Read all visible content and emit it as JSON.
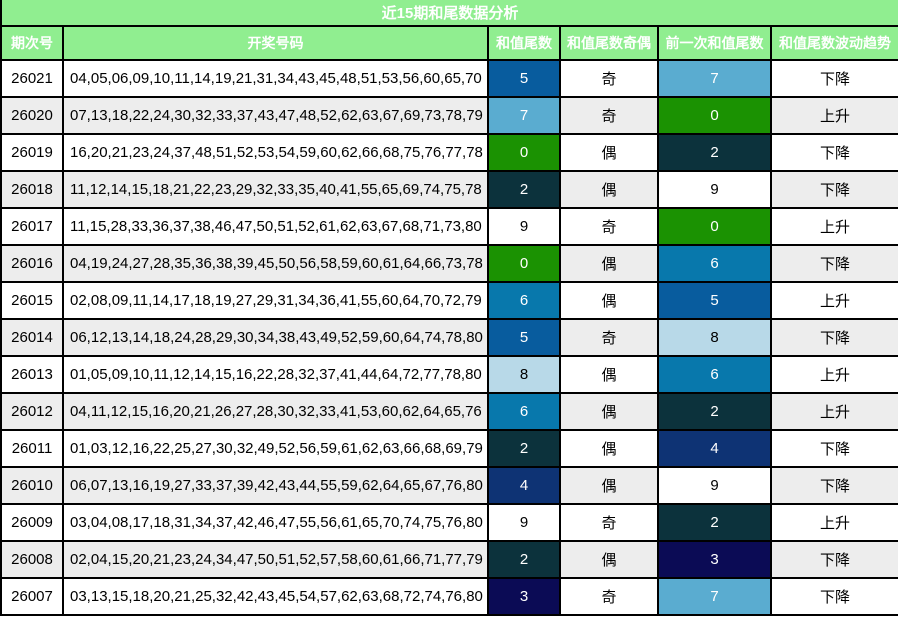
{
  "title": "近15期和尾数据分析",
  "chart_data": {
    "type": "table",
    "title": "近15期和尾数据分析",
    "columns": [
      "期次号",
      "开奖号码",
      "和值尾数",
      "和值尾数奇偶",
      "前一次和值尾数",
      "和值尾数波动趋势"
    ],
    "rows": [
      {
        "period": "26021",
        "numbers": "04,05,06,09,10,11,14,19,21,31,34,43,45,48,51,53,56,60,65,70",
        "sum_tail": "5",
        "parity": "奇",
        "prev_tail": "7",
        "trend": "下降"
      },
      {
        "period": "26020",
        "numbers": "07,13,18,22,24,30,32,33,37,43,47,48,52,62,63,67,69,73,78,79",
        "sum_tail": "7",
        "parity": "奇",
        "prev_tail": "0",
        "trend": "上升"
      },
      {
        "period": "26019",
        "numbers": "16,20,21,23,24,37,48,51,52,53,54,59,60,62,66,68,75,76,77,78",
        "sum_tail": "0",
        "parity": "偶",
        "prev_tail": "2",
        "trend": "下降"
      },
      {
        "period": "26018",
        "numbers": "11,12,14,15,18,21,22,23,29,32,33,35,40,41,55,65,69,74,75,78",
        "sum_tail": "2",
        "parity": "偶",
        "prev_tail": "9",
        "trend": "下降"
      },
      {
        "period": "26017",
        "numbers": "11,15,28,33,36,37,38,46,47,50,51,52,61,62,63,67,68,71,73,80",
        "sum_tail": "9",
        "parity": "奇",
        "prev_tail": "0",
        "trend": "上升"
      },
      {
        "period": "26016",
        "numbers": "04,19,24,27,28,35,36,38,39,45,50,56,58,59,60,61,64,66,73,78",
        "sum_tail": "0",
        "parity": "偶",
        "prev_tail": "6",
        "trend": "下降"
      },
      {
        "period": "26015",
        "numbers": "02,08,09,11,14,17,18,19,27,29,31,34,36,41,55,60,64,70,72,79",
        "sum_tail": "6",
        "parity": "偶",
        "prev_tail": "5",
        "trend": "上升"
      },
      {
        "period": "26014",
        "numbers": "06,12,13,14,18,24,28,29,30,34,38,43,49,52,59,60,64,74,78,80",
        "sum_tail": "5",
        "parity": "奇",
        "prev_tail": "8",
        "trend": "下降"
      },
      {
        "period": "26013",
        "numbers": "01,05,09,10,11,12,14,15,16,22,28,32,37,41,44,64,72,77,78,80",
        "sum_tail": "8",
        "parity": "偶",
        "prev_tail": "6",
        "trend": "上升"
      },
      {
        "period": "26012",
        "numbers": "04,11,12,15,16,20,21,26,27,28,30,32,33,41,53,60,62,64,65,76",
        "sum_tail": "6",
        "parity": "偶",
        "prev_tail": "2",
        "trend": "上升"
      },
      {
        "period": "26011",
        "numbers": "01,03,12,16,22,25,27,30,32,49,52,56,59,61,62,63,66,68,69,79",
        "sum_tail": "2",
        "parity": "偶",
        "prev_tail": "4",
        "trend": "下降"
      },
      {
        "period": "26010",
        "numbers": "06,07,13,16,19,27,33,37,39,42,43,44,55,59,62,64,65,67,76,80",
        "sum_tail": "4",
        "parity": "偶",
        "prev_tail": "9",
        "trend": "下降"
      },
      {
        "period": "26009",
        "numbers": "03,04,08,17,18,31,34,37,42,46,47,55,56,61,65,70,74,75,76,80",
        "sum_tail": "9",
        "parity": "奇",
        "prev_tail": "2",
        "trend": "上升"
      },
      {
        "period": "26008",
        "numbers": "02,04,15,20,21,23,24,34,47,50,51,52,57,58,60,61,66,71,77,79",
        "sum_tail": "2",
        "parity": "偶",
        "prev_tail": "3",
        "trend": "下降"
      },
      {
        "period": "26007",
        "numbers": "03,13,15,18,20,21,25,32,42,43,45,54,57,62,63,68,72,74,76,80",
        "sum_tail": "3",
        "parity": "奇",
        "prev_tail": "7",
        "trend": "下降"
      }
    ]
  },
  "colors": {
    "header_bg": "#90EE90",
    "header_text": "#FFFFFF",
    "grid": "#000000",
    "row_bg": "#FFFFFF",
    "row_alt_bg": "#EDEDED",
    "body_text": "#000000",
    "digit_cell_colors": {
      "0": {
        "bg": "#1B9202",
        "text": "#FFFFFF"
      },
      "2": {
        "bg": "#0C323C",
        "text": "#FFFFFF"
      },
      "3": {
        "bg": "#0B0B55",
        "text": "#FFFFFF"
      },
      "4": {
        "bg": "#0E3374",
        "text": "#FFFFFF"
      },
      "5": {
        "bg": "#085C9E",
        "text": "#FFFFFF"
      },
      "6": {
        "bg": "#0878AC",
        "text": "#FFFFFF"
      },
      "7": {
        "bg": "#5AACD0",
        "text": "#FFFFFF"
      },
      "8": {
        "bg": "#B8D9E8",
        "text": "#000000"
      },
      "9": {
        "bg": "#FFFFFF",
        "text": "#000000"
      }
    }
  }
}
